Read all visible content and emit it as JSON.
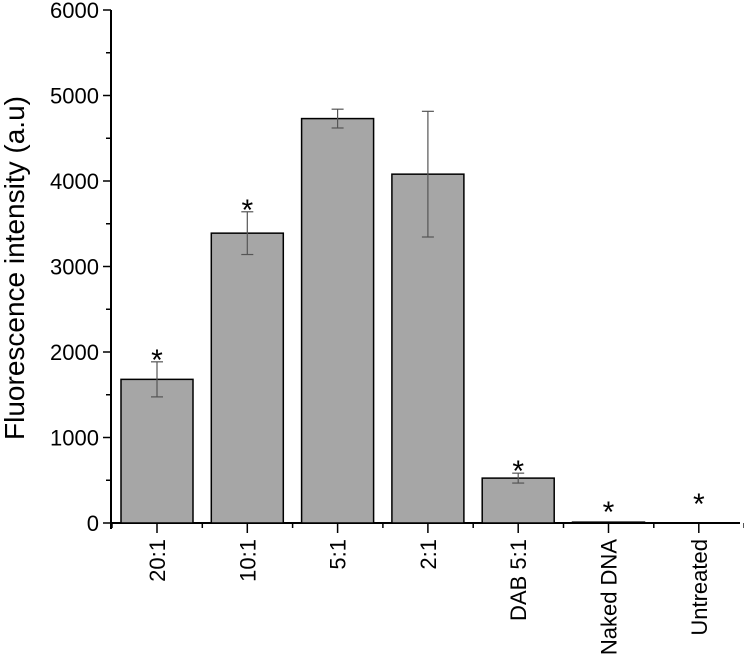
{
  "chart_data": {
    "type": "bar",
    "title": "",
    "xlabel": "",
    "ylabel": "Fluorescence intensity (a.u)",
    "ylim": [
      0,
      6000
    ],
    "yticks": [
      0,
      1000,
      2000,
      3000,
      4000,
      5000,
      6000
    ],
    "grid": false,
    "legend": null,
    "categories": [
      "20:1",
      "10:1",
      "5:1",
      "2:1",
      "DAB 5:1",
      "Naked DNA",
      "Untreated"
    ],
    "values": [
      1680,
      3390,
      4730,
      4080,
      525,
      10,
      0
    ],
    "errors": [
      205,
      250,
      110,
      735,
      58,
      0,
      0
    ],
    "significance": [
      "*",
      "*",
      "",
      "",
      "*",
      "*",
      "*"
    ],
    "bar_color": "#a6a6a6",
    "edge_color": "#000000"
  }
}
